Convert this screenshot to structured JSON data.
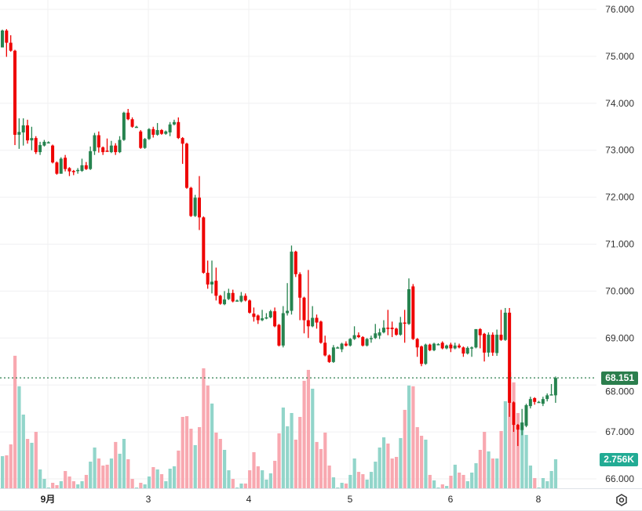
{
  "colors": {
    "up": "#26834f",
    "down": "#ee0000",
    "vol_up": "#92d5ca",
    "vol_down": "#f8a8b0",
    "last_price": "#2b7e4d",
    "volume_label": "#22ab94",
    "grid": "#f0f0f2"
  },
  "last_price_label": "68.151",
  "volume_label": "2.756K",
  "settings_icon": "gear-icon",
  "chart_data": {
    "type": "candlestick",
    "title": "",
    "ylabel": "",
    "xlabel": "",
    "ylim": [
      66,
      76
    ],
    "grid": true,
    "y_ticks": [
      "76.000",
      "75.000",
      "74.000",
      "73.000",
      "72.000",
      "71.000",
      "70.000",
      "69.000",
      "68.000",
      "67.000",
      "66.000"
    ],
    "x_ticks": [
      "9月",
      "3",
      "4",
      "5",
      "6",
      "8"
    ],
    "last_price": 68.151,
    "volume_unit": "K",
    "ohlc": [
      [
        75.19,
        75.57,
        75.19,
        75.55
      ],
      [
        75.55,
        75.58,
        74.99,
        75.29
      ],
      [
        75.29,
        75.45,
        75.1,
        75.12
      ],
      [
        75.12,
        75.14,
        73.11,
        73.33
      ],
      [
        73.33,
        73.68,
        73.03,
        73.39
      ],
      [
        73.38,
        73.68,
        73.1,
        73.53
      ],
      [
        73.53,
        73.65,
        73.14,
        73.21
      ],
      [
        73.21,
        73.5,
        73.0,
        73.26
      ],
      [
        73.26,
        73.3,
        72.92,
        72.96
      ],
      [
        72.96,
        73.18,
        72.9,
        73.11
      ],
      [
        73.1,
        73.22,
        73.08,
        73.18
      ],
      [
        73.17,
        73.19,
        73.15,
        73.17
      ],
      [
        73.1,
        73.12,
        72.72,
        72.74
      ],
      [
        72.74,
        72.76,
        72.48,
        72.5
      ],
      [
        72.5,
        72.85,
        72.5,
        72.82
      ],
      [
        72.84,
        72.9,
        72.55,
        72.6
      ],
      [
        72.62,
        72.64,
        72.45,
        72.55
      ],
      [
        72.56,
        72.58,
        72.47,
        72.55
      ],
      [
        72.56,
        72.62,
        72.5,
        72.58
      ],
      [
        72.56,
        72.82,
        72.54,
        72.68
      ],
      [
        72.68,
        72.75,
        72.58,
        72.6
      ],
      [
        72.6,
        73.08,
        72.58,
        72.98
      ],
      [
        72.98,
        73.37,
        72.9,
        73.32
      ],
      [
        73.32,
        73.4,
        72.95,
        73.06
      ],
      [
        73.06,
        73.08,
        72.9,
        72.96
      ],
      [
        72.99,
        73.25,
        72.97,
        72.98
      ],
      [
        72.96,
        73.2,
        72.94,
        73.1
      ],
      [
        73.1,
        73.15,
        72.9,
        72.96
      ],
      [
        72.96,
        73.3,
        72.94,
        73.22
      ],
      [
        73.22,
        73.82,
        73.2,
        73.8
      ],
      [
        73.8,
        73.88,
        73.64,
        73.66
      ],
      [
        73.66,
        73.7,
        73.48,
        73.5
      ],
      [
        73.5,
        73.52,
        73.48,
        73.5
      ],
      [
        73.4,
        73.43,
        73.03,
        73.05
      ],
      [
        73.05,
        73.26,
        73.03,
        73.24
      ],
      [
        73.24,
        73.47,
        73.22,
        73.45
      ],
      [
        73.45,
        73.5,
        73.27,
        73.33
      ],
      [
        73.33,
        73.58,
        73.31,
        73.43
      ],
      [
        73.43,
        73.45,
        73.33,
        73.35
      ],
      [
        73.35,
        73.42,
        73.33,
        73.4
      ],
      [
        73.38,
        73.6,
        73.3,
        73.55
      ],
      [
        73.55,
        73.65,
        73.53,
        73.6
      ],
      [
        73.6,
        73.7,
        73.24,
        73.26
      ],
      [
        73.26,
        73.28,
        72.71,
        73.14
      ],
      [
        73.14,
        73.16,
        72.18,
        72.2
      ],
      [
        72.2,
        72.22,
        71.58,
        71.6
      ],
      [
        71.6,
        72.05,
        71.58,
        71.99
      ],
      [
        71.99,
        72.45,
        71.3,
        71.57
      ],
      [
        71.57,
        71.59,
        70.37,
        70.39
      ],
      [
        70.39,
        70.65,
        70.05,
        70.14
      ],
      [
        70.14,
        70.65,
        69.95,
        70.2
      ],
      [
        70.22,
        70.5,
        69.8,
        69.9
      ],
      [
        69.9,
        69.92,
        69.71,
        69.73
      ],
      [
        69.72,
        70.0,
        69.7,
        69.82
      ],
      [
        69.83,
        70.05,
        69.81,
        69.96
      ],
      [
        69.96,
        70.03,
        69.76,
        69.78
      ],
      [
        69.8,
        69.82,
        69.78,
        69.8
      ],
      [
        69.78,
        69.98,
        69.76,
        69.9
      ],
      [
        69.9,
        69.95,
        69.78,
        69.8
      ],
      [
        69.8,
        69.82,
        69.52,
        69.54
      ],
      [
        69.52,
        69.65,
        69.35,
        69.45
      ],
      [
        69.48,
        69.5,
        69.3,
        69.38
      ],
      [
        69.38,
        69.6,
        69.36,
        69.42
      ],
      [
        69.42,
        69.53,
        69.4,
        69.44
      ],
      [
        69.44,
        69.6,
        69.42,
        69.57
      ],
      [
        69.57,
        69.65,
        69.23,
        69.25
      ],
      [
        69.28,
        69.3,
        68.82,
        68.84
      ],
      [
        68.84,
        69.68,
        68.8,
        69.53
      ],
      [
        69.53,
        70.17,
        69.48,
        69.58
      ],
      [
        69.58,
        70.97,
        69.5,
        70.84
      ],
      [
        70.84,
        70.86,
        70.3,
        70.36
      ],
      [
        70.36,
        70.4,
        69.38,
        69.86
      ],
      [
        69.86,
        69.88,
        69.1,
        69.38
      ],
      [
        69.38,
        70.45,
        69.0,
        69.25
      ],
      [
        69.25,
        69.68,
        69.23,
        69.43
      ],
      [
        69.43,
        69.5,
        69.2,
        69.33
      ],
      [
        69.35,
        69.37,
        68.88,
        68.9
      ],
      [
        68.9,
        69.05,
        68.61,
        68.63
      ],
      [
        68.63,
        68.65,
        68.47,
        68.49
      ],
      [
        68.49,
        68.85,
        68.47,
        68.8
      ],
      [
        68.8,
        68.82,
        68.78,
        68.8
      ],
      [
        68.76,
        68.9,
        68.7,
        68.88
      ],
      [
        68.88,
        68.93,
        68.82,
        68.84
      ],
      [
        68.84,
        69.0,
        68.82,
        68.98
      ],
      [
        68.98,
        69.25,
        68.96,
        69.06
      ],
      [
        69.06,
        69.12,
        69.0,
        69.02
      ],
      [
        69.02,
        69.04,
        68.82,
        68.84
      ],
      [
        68.84,
        69.0,
        68.82,
        68.98
      ],
      [
        68.98,
        69.05,
        68.9,
        69.0
      ],
      [
        69.0,
        69.3,
        68.98,
        69.1
      ],
      [
        69.05,
        69.2,
        68.98,
        69.12
      ],
      [
        69.12,
        69.38,
        69.1,
        69.22
      ],
      [
        69.22,
        69.6,
        69.06,
        69.2
      ],
      [
        69.22,
        69.35,
        69.02,
        69.19
      ],
      [
        69.2,
        69.22,
        69.05,
        69.07
      ],
      [
        69.07,
        69.45,
        69.05,
        69.33
      ],
      [
        69.33,
        69.6,
        68.9,
        69.32
      ],
      [
        69.3,
        70.27,
        69.28,
        70.04
      ],
      [
        70.1,
        70.15,
        68.96,
        68.98
      ],
      [
        68.98,
        69.0,
        68.6,
        68.8
      ],
      [
        68.82,
        68.84,
        68.4,
        68.45
      ],
      [
        68.45,
        68.88,
        68.43,
        68.86
      ],
      [
        68.86,
        68.88,
        68.72,
        68.74
      ],
      [
        68.74,
        68.9,
        68.72,
        68.88
      ],
      [
        68.87,
        68.89,
        68.85,
        68.87
      ],
      [
        68.9,
        68.93,
        68.76,
        68.78
      ],
      [
        68.78,
        68.86,
        68.76,
        68.84
      ],
      [
        68.86,
        68.9,
        68.7,
        68.78
      ],
      [
        68.78,
        68.9,
        68.76,
        68.84
      ],
      [
        68.84,
        68.88,
        68.78,
        68.8
      ],
      [
        68.8,
        68.82,
        68.6,
        68.67
      ],
      [
        68.67,
        68.82,
        68.65,
        68.79
      ],
      [
        68.8,
        68.82,
        68.6,
        68.8
      ],
      [
        68.8,
        69.19,
        68.78,
        69.19
      ],
      [
        69.19,
        69.21,
        68.78,
        69.06
      ],
      [
        69.09,
        69.11,
        68.5,
        68.69
      ],
      [
        68.69,
        69.12,
        68.6,
        69.07
      ],
      [
        69.07,
        69.12,
        68.62,
        68.69
      ],
      [
        68.68,
        69.18,
        68.62,
        69.07
      ],
      [
        69.07,
        69.6,
        68.94,
        68.96
      ],
      [
        68.96,
        69.64,
        68.94,
        69.54
      ],
      [
        69.54,
        69.64,
        67.32,
        67.62
      ],
      [
        67.63,
        67.65,
        67.0,
        67.15
      ],
      [
        67.15,
        67.17,
        66.7,
        67.05
      ],
      [
        67.04,
        67.49,
        66.93,
        67.2
      ],
      [
        67.13,
        67.6,
        67.1,
        67.57
      ],
      [
        67.55,
        67.75,
        67.5,
        67.7
      ],
      [
        67.72,
        67.74,
        67.58,
        67.64
      ],
      [
        67.64,
        67.66,
        67.62,
        67.64
      ],
      [
        67.6,
        67.75,
        67.55,
        67.7
      ],
      [
        67.7,
        67.82,
        67.65,
        67.78
      ],
      [
        67.8,
        68.02,
        67.78,
        67.8
      ],
      [
        67.78,
        68.18,
        67.62,
        68.15
      ]
    ],
    "volume": [
      3.05,
      3.13,
      4.17,
      12.59,
      9.69,
      7.0,
      4.69,
      4.32,
      5.36,
      1.79,
      0.89,
      0.07,
      0.52,
      0.3,
      0.67,
      1.64,
      1.12,
      0.67,
      0.37,
      0.67,
      1.27,
      2.53,
      3.87,
      2.83,
      2.16,
      2.24,
      2.83,
      4.4,
      3.28,
      4.69,
      2.76,
      0.89,
      0.07,
      0.52,
      0.37,
      1.12,
      2.01,
      1.79,
      1.34,
      0.67,
      1.86,
      2.09,
      3.58,
      6.78,
      6.85,
      5.66,
      4.1,
      5.81,
      11.4,
      9.76,
      8.05,
      5.29,
      4.69,
      3.65,
      1.71,
      0.89,
      0.07,
      0.45,
      0.45,
      1.71,
      3.43,
      2.09,
      1.71,
      0.82,
      1.42,
      2.61,
      5.22,
      7.67,
      5.89,
      7.15,
      4.62,
      6.78,
      10.21,
      11.25,
      9.46,
      4.4,
      3.73,
      5.29,
      2.16,
      1.04,
      0.07,
      0.52,
      0.45,
      1.27,
      2.83,
      1.56,
      1.34,
      0.82,
      1.56,
      2.53,
      3.87,
      4.84,
      4.25,
      2.83,
      2.98,
      4.77,
      7.45,
      9.76,
      9.69,
      5.81,
      4.99,
      4.62,
      1.27,
      0.75,
      0.07,
      0.37,
      0.22,
      1.19,
      2.24,
      1.49,
      1.27,
      0.67,
      1.49,
      2.38,
      3.65,
      5.36,
      3.5,
      2.83,
      2.83,
      5.44,
      8.27,
      11.03,
      10.06,
      7.15,
      6.26,
      5.07,
      2.16,
      0.97,
      0.07,
      0.97,
      0.67,
      1.64,
      2.756
    ]
  }
}
